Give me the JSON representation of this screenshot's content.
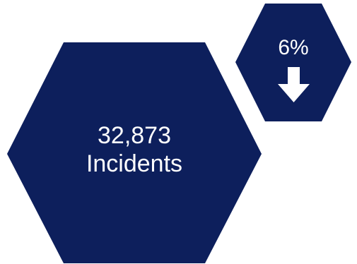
{
  "colors": {
    "hexagon_fill": "#0d1f5c",
    "text": "#ffffff",
    "background": "#ffffff"
  },
  "main_stat": {
    "value": "32,873",
    "label": "Incidents"
  },
  "change_stat": {
    "value": "6%",
    "direction_icon": "arrow-down-icon"
  }
}
